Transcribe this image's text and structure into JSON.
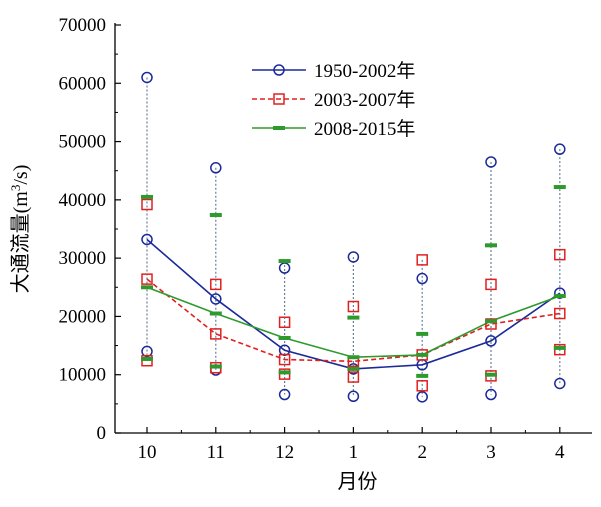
{
  "chart_data": {
    "type": "line",
    "xlabel": "月份",
    "ylabel": "大通流量(m³/s)",
    "ylabel_parts": {
      "main": "大通流量(m",
      "sup": "3",
      "tail": "/s)"
    },
    "categories": [
      "10",
      "11",
      "12",
      "1",
      "2",
      "3",
      "4"
    ],
    "ylim": [
      0,
      70000
    ],
    "yticks": [
      0,
      10000,
      20000,
      30000,
      40000,
      50000,
      60000,
      70000
    ],
    "ytick_labels": [
      "0",
      "10000",
      "20000",
      "30000",
      "40000",
      "50000",
      "60000",
      "70000"
    ],
    "legend_position": "top-center",
    "grid": false,
    "series": [
      {
        "name": "1950-2002年",
        "color": "#1a2a9a",
        "line_style": "solid",
        "marker": "circle",
        "mean": [
          33200,
          23000,
          14200,
          11000,
          11700,
          15800,
          24000
        ],
        "max": [
          61000,
          45500,
          28300,
          30200,
          26500,
          46500,
          48700
        ],
        "min": [
          14000,
          10800,
          6600,
          6300,
          6200,
          6600,
          8500
        ]
      },
      {
        "name": "2003-2007年",
        "color": "#e02020",
        "line_style": "dashed",
        "marker": "square",
        "mean": [
          26400,
          17000,
          12600,
          12300,
          13400,
          18700,
          20500
        ],
        "max": [
          39200,
          25500,
          19000,
          21700,
          29700,
          25500,
          30600
        ],
        "min": [
          12400,
          11200,
          10100,
          9600,
          8100,
          9800,
          14300
        ]
      },
      {
        "name": "2008-2015年",
        "color": "#2e9a2e",
        "line_style": "solid",
        "marker": "dash",
        "mean": [
          25000,
          20500,
          16300,
          13000,
          13400,
          19200,
          23500
        ],
        "max": [
          40500,
          37400,
          29500,
          19800,
          17000,
          32200,
          42200
        ],
        "min": [
          12700,
          11400,
          10400,
          11000,
          9800,
          10000,
          14600
        ]
      }
    ],
    "range_line_color": "#6a7f99"
  }
}
